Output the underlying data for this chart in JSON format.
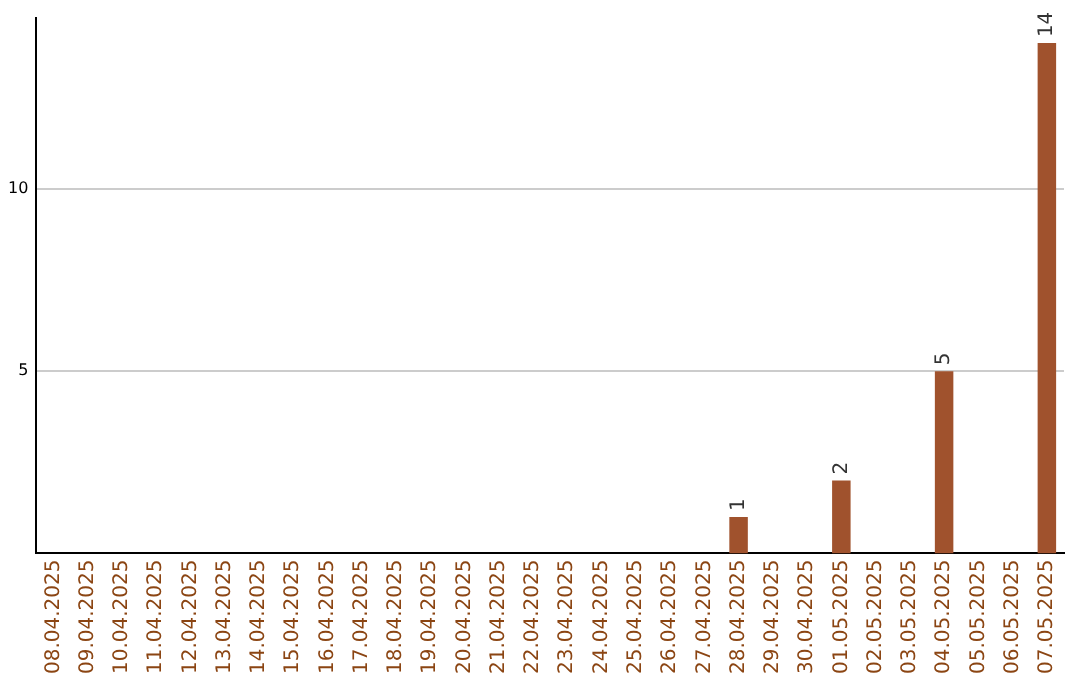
{
  "chart_data": {
    "type": "bar",
    "categories": [
      "08.04.2025",
      "09.04.2025",
      "10.04.2025",
      "11.04.2025",
      "12.04.2025",
      "13.04.2025",
      "14.04.2025",
      "15.04.2025",
      "16.04.2025",
      "17.04.2025",
      "18.04.2025",
      "19.04.2025",
      "20.04.2025",
      "21.04.2025",
      "22.04.2025",
      "23.04.2025",
      "24.04.2025",
      "25.04.2025",
      "26.04.2025",
      "27.04.2025",
      "28.04.2025",
      "29.04.2025",
      "30.04.2025",
      "01.05.2025",
      "02.05.2025",
      "03.05.2025",
      "04.05.2025",
      "05.05.2025",
      "06.05.2025",
      "07.05.2025"
    ],
    "values": [
      0,
      0,
      0,
      0,
      0,
      0,
      0,
      0,
      0,
      0,
      0,
      0,
      0,
      0,
      0,
      0,
      0,
      0,
      0,
      0,
      1,
      0,
      0,
      2,
      0,
      0,
      5,
      0,
      0,
      14
    ],
    "value_labels": [
      null,
      null,
      null,
      null,
      null,
      null,
      null,
      null,
      null,
      null,
      null,
      null,
      null,
      null,
      null,
      null,
      null,
      null,
      null,
      null,
      "1",
      null,
      null,
      "2",
      null,
      null,
      "5",
      null,
      null,
      "14"
    ],
    "color": "#a0522d",
    "ylim": [
      0,
      14.7
    ],
    "yticks": [
      5,
      10
    ],
    "grid": "y",
    "legend": false
  }
}
